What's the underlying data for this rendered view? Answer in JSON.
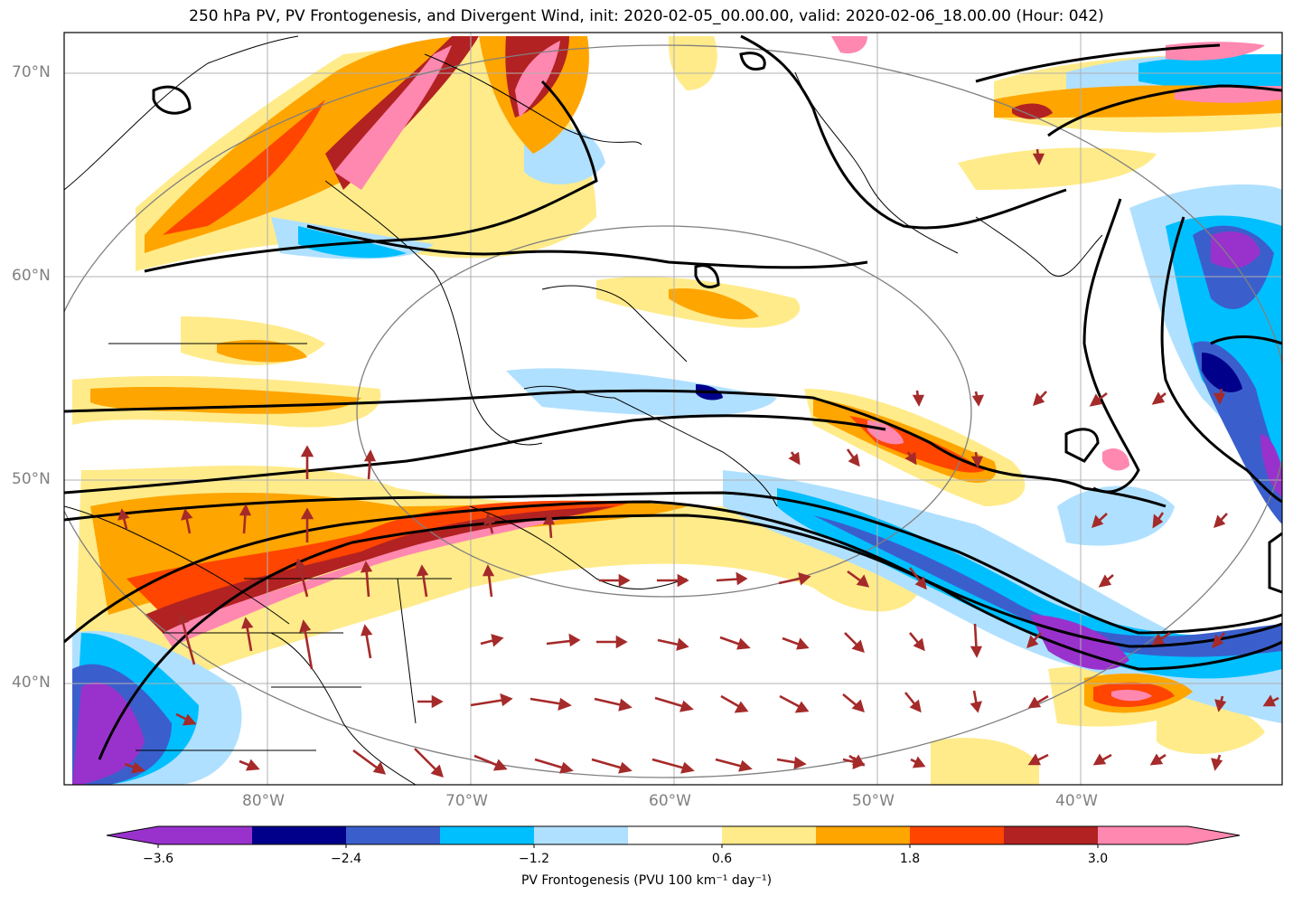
{
  "title": "250 hPa PV, PV Frontogenesis, and Divergent Wind, init: 2020-02-05_00.00.00, valid: 2020-02-06_18.00.00 (Hour: 042)",
  "lat_labels": [
    "70°N",
    "60°N",
    "50°N",
    "40°N"
  ],
  "lon_labels": [
    "80°W",
    "70°W",
    "60°W",
    "50°W",
    "40°W"
  ],
  "colorbar": {
    "title": "PV Frontogenesis (PVU 100 km⁻¹ day⁻¹)",
    "tick_labels": [
      "−3.6",
      "−2.4",
      "−1.2",
      "0.6",
      "1.8",
      "3.0"
    ],
    "colors": [
      "#9932cc",
      "#00008b",
      "#3a5fcd",
      "#00bfff",
      "#b0e0ff",
      "#ffffff",
      "#ffeb8a",
      "#ffa500",
      "#ff4500",
      "#b22222",
      "#ff88b0"
    ]
  },
  "colors": {
    "arrow": "#a52a2a",
    "contour": "#000000",
    "grid": "#b0b0b0",
    "ring": "#808080"
  }
}
